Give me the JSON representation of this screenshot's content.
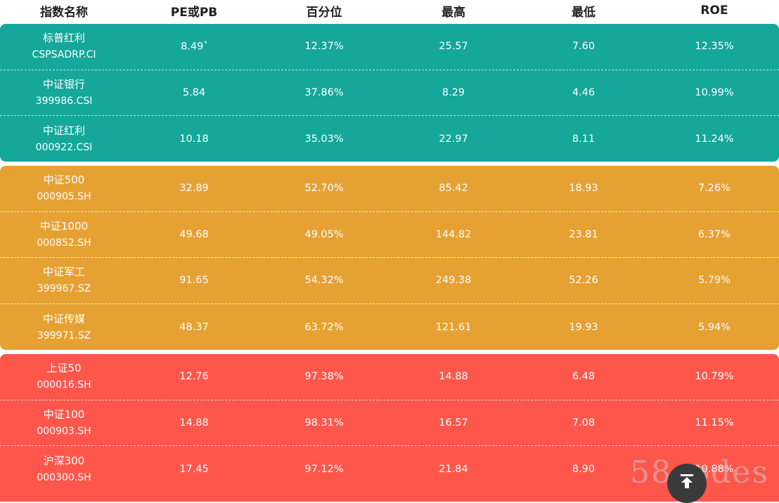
{
  "header": {
    "name": "指数名称",
    "pe_pb": "PE或PB",
    "percentile": "百分位",
    "high": "最高",
    "low": "最低",
    "roe": "ROE"
  },
  "colors": {
    "green": "#14a79a",
    "orange": "#e6a133",
    "red": "#ff564b"
  },
  "groups": [
    {
      "color": "green",
      "rows": [
        {
          "name": "标普红利",
          "code": "CSPSADRP.CI",
          "value": "8.49",
          "star": "*",
          "percentile": "12.37%",
          "high": "25.57",
          "low": "7.60",
          "roe": "12.35%"
        },
        {
          "name": "中证银行",
          "code": "399986.CSI",
          "value": "5.84",
          "percentile": "37.86%",
          "high": "8.29",
          "low": "4.46",
          "roe": "10.99%"
        },
        {
          "name": "中证红利",
          "code": "000922.CSI",
          "value": "10.18",
          "percentile": "35.03%",
          "high": "22.97",
          "low": "8.11",
          "roe": "11.24%"
        }
      ]
    },
    {
      "color": "orange",
      "rows": [
        {
          "name": "中证500",
          "code": "000905.SH",
          "value": "32.89",
          "percentile": "52.70%",
          "high": "85.42",
          "low": "18.93",
          "roe": "7.26%"
        },
        {
          "name": "中证1000",
          "code": "000852.SH",
          "value": "49.68",
          "percentile": "49.05%",
          "high": "144.82",
          "low": "23.81",
          "roe": "6.37%"
        },
        {
          "name": "中证军工",
          "code": "399967.SZ",
          "value": "91.65",
          "percentile": "54.32%",
          "high": "249.38",
          "low": "52.26",
          "roe": "5.79%"
        },
        {
          "name": "中证传媒",
          "code": "399971.SZ",
          "value": "48.37",
          "percentile": "63.72%",
          "high": "121.61",
          "low": "19.93",
          "roe": "5.94%"
        }
      ]
    },
    {
      "color": "red",
      "rows": [
        {
          "name": "上证50",
          "code": "000016.SH",
          "value": "12.76",
          "percentile": "97.38%",
          "high": "14.88",
          "low": "6.48",
          "roe": "10.79%"
        },
        {
          "name": "中证100",
          "code": "000903.SH",
          "value": "14.88",
          "percentile": "98.31%",
          "high": "16.57",
          "low": "7.08",
          "roe": "11.15%"
        },
        {
          "name": "沪深300",
          "code": "000300.SH",
          "value": "17.45",
          "percentile": "97.12%",
          "high": "21.84",
          "low": "8.90",
          "roe": "10.88%"
        }
      ]
    }
  ],
  "watermark": "58codes",
  "back_to_top_icon": "arrow-up-to-line-icon"
}
